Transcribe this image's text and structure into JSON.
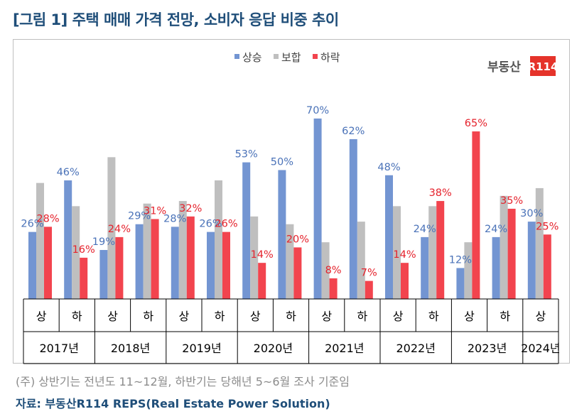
{
  "title": "[그림 1] 주택 매매 가격 전망, 소비자 응답 비중 추이",
  "logo": {
    "left_text": "부동산",
    "right_text": "R114",
    "color": "#e5332a"
  },
  "note": "(주) 상반기는 전년도 11~12월, 하반기는 당해년 5~6월 조사 기준임",
  "source": "자료: 부동산R114 REPS(Real Estate Power Solution)",
  "chart_data": {
    "type": "bar",
    "title": "",
    "xlabel": "",
    "ylabel": "",
    "ylim": [
      0,
      100
    ],
    "grid": false,
    "legend_position": "top-center",
    "categories": [
      "상",
      "하",
      "상",
      "하",
      "상",
      "하",
      "상",
      "하",
      "상",
      "하",
      "상",
      "하",
      "상",
      "하",
      "상"
    ],
    "years": [
      "2017년",
      "2018년",
      "2019년",
      "2020년",
      "2021년",
      "2022년",
      "2023년",
      "2024년"
    ],
    "series": [
      {
        "name": "상승",
        "color": "#7395d2",
        "label_color": "#4a72b8",
        "values": [
          26,
          46,
          19,
          29,
          28,
          26,
          53,
          50,
          70,
          62,
          48,
          24,
          12,
          24,
          30
        ]
      },
      {
        "name": "보합",
        "color": "#bfbfbf",
        "label_color": "#7f7f7f",
        "values": [
          45,
          36,
          55,
          37,
          38,
          46,
          32,
          29,
          22,
          30,
          36,
          36,
          22,
          40,
          43
        ]
      },
      {
        "name": "하락",
        "color": "#f2444e",
        "label_color": "#e5222c",
        "values": [
          28,
          16,
          24,
          31,
          32,
          26,
          14,
          20,
          8,
          7,
          14,
          38,
          65,
          35,
          25
        ]
      }
    ],
    "data_labels": [
      [
        "26%",
        "46%",
        "19%",
        "29%",
        "28%",
        "26%",
        "53%",
        "50%",
        "70%",
        "62%",
        "48%",
        "24%",
        "12%",
        "24%",
        "30%"
      ],
      [
        "",
        "",
        "",
        "",
        "",
        "",
        "",
        "",
        "",
        "",
        "",
        "",
        "",
        "",
        ""
      ],
      [
        "28%",
        "16%",
        "24%",
        "31%",
        "32%",
        "26%",
        "14%",
        "20%",
        "8%",
        "7%",
        "14%",
        "38%",
        "65%",
        "35%",
        "25%"
      ]
    ]
  }
}
